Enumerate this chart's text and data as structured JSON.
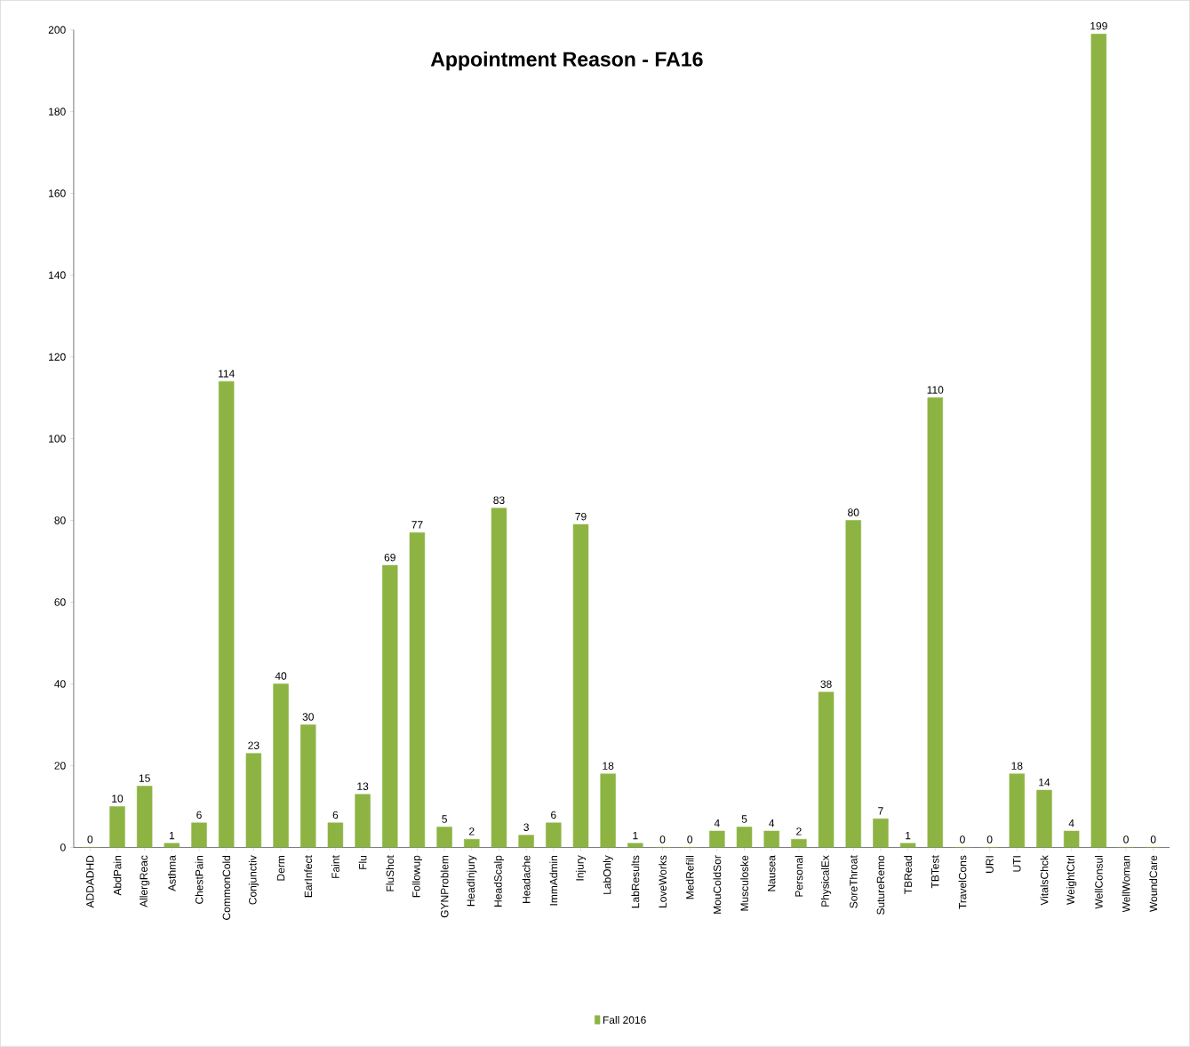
{
  "chart_data": {
    "type": "bar",
    "title": "Appointment Reason - FA16",
    "categories": [
      "ADDADHD",
      "AbdPain",
      "AllergReac",
      "Asthma",
      "ChestPain",
      "CommonCold",
      "Conjunctiv",
      "Derm",
      "EarInfect",
      "Faint",
      "Flu",
      "FluShot",
      "Followup",
      "GYNProblem",
      "HeadInjury",
      "HeadScalp",
      "Headache",
      "ImmAdmin",
      "Injury",
      "LabOnly",
      "LabResults",
      "LoveWorks",
      "MedRefill",
      "MouColdSor",
      "Musculoske",
      "Nausea",
      "Personal",
      "PhysicalEx",
      "SoreThroat",
      "SutureRemo",
      "TBRead",
      "TBTest",
      "TravelCons",
      "URI",
      "UTI",
      "VitalsChck",
      "WeightCtrl",
      "WellConsul",
      "WellWoman",
      "WoundCare"
    ],
    "series": [
      {
        "name": "Fall 2016",
        "color": "#8db443",
        "values": [
          0,
          10,
          15,
          1,
          6,
          114,
          23,
          40,
          30,
          6,
          13,
          69,
          77,
          5,
          2,
          83,
          3,
          6,
          79,
          18,
          1,
          0,
          0,
          4,
          5,
          4,
          2,
          38,
          80,
          7,
          1,
          110,
          0,
          0,
          18,
          14,
          4,
          199,
          0,
          0
        ]
      }
    ],
    "ylim": [
      0,
      200
    ],
    "yticks": [
      0,
      20,
      40,
      60,
      80,
      100,
      120,
      140,
      160,
      180,
      200
    ],
    "data_labels": true,
    "grid": false,
    "legend": "bottom"
  }
}
